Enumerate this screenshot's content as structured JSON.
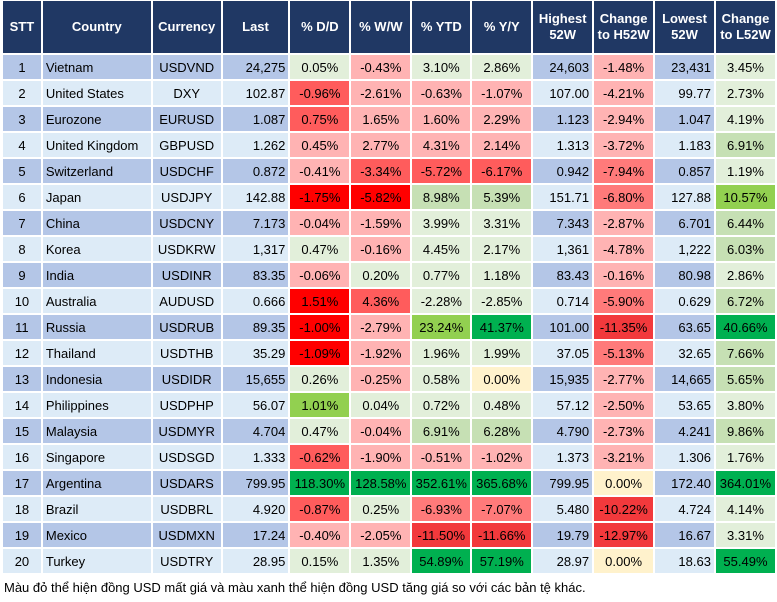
{
  "headers": [
    "STT",
    "Country",
    "Currency",
    "Last",
    "% D/D",
    "% W/W",
    "% YTD",
    "% Y/Y",
    "Highest 52W",
    "Change to H52W",
    "Lowest 52W",
    "Change to L52W"
  ],
  "palette": {
    "r1": "#ffb3b3",
    "r2": "#ff7a7a",
    "r3": "#ff5c5c",
    "r4": "#f2393c",
    "r5": "#ff0000",
    "g1": "#e2efda",
    "g2": "#c6e0b4",
    "g3": "#92d050",
    "g4": "#00b050",
    "y": "#fff2cc"
  },
  "rows": [
    {
      "stt": "1",
      "country": "Vietnam",
      "currency": "USDVND",
      "last": "24,275",
      "dd": "0.05%",
      "ww": "-0.43%",
      "ytd": "3.10%",
      "yy": "2.86%",
      "h52": "24,603",
      "ch52": "-1.48%",
      "l52": "23,431",
      "cl52": "3.45%",
      "colors": [
        "g1",
        "r1",
        "g1",
        "g1",
        "r1",
        "g1"
      ]
    },
    {
      "stt": "2",
      "country": "United States",
      "currency": "DXY",
      "last": "102.87",
      "dd": "-0.96%",
      "ww": "-2.61%",
      "ytd": "-0.63%",
      "yy": "-1.07%",
      "h52": "107.00",
      "ch52": "-4.21%",
      "l52": "99.77",
      "cl52": "2.73%",
      "colors": [
        "r3",
        "r1",
        "r1",
        "r1",
        "r1",
        "g1"
      ]
    },
    {
      "stt": "3",
      "country": "Eurozone",
      "currency": "EURUSD",
      "last": "1.087",
      "dd": "0.75%",
      "ww": "1.65%",
      "ytd": "1.60%",
      "yy": "2.29%",
      "h52": "1.123",
      "ch52": "-2.94%",
      "l52": "1.047",
      "cl52": "4.19%",
      "colors": [
        "r3",
        "r1",
        "r1",
        "r1",
        "r1",
        "g1"
      ]
    },
    {
      "stt": "4",
      "country": "United Kingdom",
      "currency": "GBPUSD",
      "last": "1.262",
      "dd": "0.45%",
      "ww": "2.77%",
      "ytd": "4.31%",
      "yy": "2.14%",
      "h52": "1.313",
      "ch52": "-3.72%",
      "l52": "1.183",
      "cl52": "6.91%",
      "colors": [
        "r1",
        "r1",
        "r1",
        "r1",
        "r1",
        "g2"
      ]
    },
    {
      "stt": "5",
      "country": "Switzerland",
      "currency": "USDCHF",
      "last": "0.872",
      "dd": "-0.41%",
      "ww": "-3.34%",
      "ytd": "-5.72%",
      "yy": "-6.17%",
      "h52": "0.942",
      "ch52": "-7.94%",
      "l52": "0.857",
      "cl52": "1.19%",
      "colors": [
        "r1",
        "r3",
        "r3",
        "r3",
        "r2",
        "g1"
      ]
    },
    {
      "stt": "6",
      "country": "Japan",
      "currency": "USDJPY",
      "last": "142.88",
      "dd": "-1.75%",
      "ww": "-5.82%",
      "ytd": "8.98%",
      "yy": "5.39%",
      "h52": "151.71",
      "ch52": "-6.80%",
      "l52": "127.88",
      "cl52": "10.57%",
      "colors": [
        "r5",
        "r5",
        "g2",
        "g2",
        "r2",
        "g3"
      ]
    },
    {
      "stt": "7",
      "country": "China",
      "currency": "USDCNY",
      "last": "7.173",
      "dd": "-0.04%",
      "ww": "-1.59%",
      "ytd": "3.99%",
      "yy": "3.31%",
      "h52": "7.343",
      "ch52": "-2.87%",
      "l52": "6.701",
      "cl52": "6.44%",
      "colors": [
        "r1",
        "r1",
        "g1",
        "g1",
        "r1",
        "g2"
      ]
    },
    {
      "stt": "8",
      "country": "Korea",
      "currency": "USDKRW",
      "last": "1,317",
      "dd": "0.47%",
      "ww": "-0.16%",
      "ytd": "4.45%",
      "yy": "2.17%",
      "h52": "1,361",
      "ch52": "-4.78%",
      "l52": "1,222",
      "cl52": "6.03%",
      "colors": [
        "g1",
        "r1",
        "g1",
        "g1",
        "r1",
        "g2"
      ]
    },
    {
      "stt": "9",
      "country": "India",
      "currency": "USDINR",
      "last": "83.35",
      "dd": "-0.06%",
      "ww": "0.20%",
      "ytd": "0.77%",
      "yy": "1.18%",
      "h52": "83.43",
      "ch52": "-0.16%",
      "l52": "80.98",
      "cl52": "2.86%",
      "colors": [
        "r1",
        "g1",
        "g1",
        "g1",
        "r1",
        "g1"
      ]
    },
    {
      "stt": "10",
      "country": "Australia",
      "currency": "AUDUSD",
      "last": "0.666",
      "dd": "1.51%",
      "ww": "4.36%",
      "ytd": "-2.28%",
      "yy": "-2.85%",
      "h52": "0.714",
      "ch52": "-5.90%",
      "l52": "0.629",
      "cl52": "6.72%",
      "colors": [
        "r5",
        "r3",
        "g1",
        "g1",
        "r2",
        "g2"
      ]
    },
    {
      "stt": "11",
      "country": "Russia",
      "currency": "USDRUB",
      "last": "89.35",
      "dd": "-1.00%",
      "ww": "-2.79%",
      "ytd": "23.24%",
      "yy": "41.37%",
      "h52": "101.00",
      "ch52": "-11.35%",
      "l52": "63.65",
      "cl52": "40.66%",
      "colors": [
        "r5",
        "r1",
        "g3",
        "g4",
        "r4",
        "g4"
      ]
    },
    {
      "stt": "12",
      "country": "Thailand",
      "currency": "USDTHB",
      "last": "35.29",
      "dd": "-1.09%",
      "ww": "-1.92%",
      "ytd": "1.96%",
      "yy": "1.99%",
      "h52": "37.05",
      "ch52": "-5.13%",
      "l52": "32.65",
      "cl52": "7.66%",
      "colors": [
        "r5",
        "r1",
        "g1",
        "g1",
        "r2",
        "g2"
      ]
    },
    {
      "stt": "13",
      "country": "Indonesia",
      "currency": "USDIDR",
      "last": "15,655",
      "dd": "0.26%",
      "ww": "-0.25%",
      "ytd": "0.58%",
      "yy": "0.00%",
      "h52": "15,935",
      "ch52": "-2.77%",
      "l52": "14,665",
      "cl52": "5.65%",
      "colors": [
        "g1",
        "r1",
        "g1",
        "y",
        "r1",
        "g2"
      ]
    },
    {
      "stt": "14",
      "country": "Philippines",
      "currency": "USDPHP",
      "last": "56.07",
      "dd": "1.01%",
      "ww": "0.04%",
      "ytd": "0.72%",
      "yy": "0.48%",
      "h52": "57.12",
      "ch52": "-2.50%",
      "l52": "53.65",
      "cl52": "3.80%",
      "colors": [
        "g3",
        "g1",
        "g1",
        "g1",
        "r1",
        "g1"
      ]
    },
    {
      "stt": "15",
      "country": "Malaysia",
      "currency": "USDMYR",
      "last": "4.704",
      "dd": "0.47%",
      "ww": "-0.04%",
      "ytd": "6.91%",
      "yy": "6.28%",
      "h52": "4.790",
      "ch52": "-2.73%",
      "l52": "4.241",
      "cl52": "9.86%",
      "colors": [
        "g1",
        "r1",
        "g2",
        "g2",
        "r1",
        "g2"
      ]
    },
    {
      "stt": "16",
      "country": "Singapore",
      "currency": "USDSGD",
      "last": "1.333",
      "dd": "-0.62%",
      "ww": "-1.90%",
      "ytd": "-0.51%",
      "yy": "-1.02%",
      "h52": "1.373",
      "ch52": "-3.21%",
      "l52": "1.306",
      "cl52": "1.76%",
      "colors": [
        "r3",
        "r1",
        "r1",
        "r1",
        "r1",
        "g1"
      ]
    },
    {
      "stt": "17",
      "country": "Argentina",
      "currency": "USDARS",
      "last": "799.95",
      "dd": "118.30%",
      "ww": "128.58%",
      "ytd": "352.61%",
      "yy": "365.68%",
      "h52": "799.95",
      "ch52": "0.00%",
      "l52": "172.40",
      "cl52": "364.01%",
      "colors": [
        "g4",
        "g4",
        "g4",
        "g4",
        "y",
        "g4"
      ]
    },
    {
      "stt": "18",
      "country": "Brazil",
      "currency": "USDBRL",
      "last": "4.920",
      "dd": "-0.87%",
      "ww": "0.25%",
      "ytd": "-6.93%",
      "yy": "-7.07%",
      "h52": "5.480",
      "ch52": "-10.22%",
      "l52": "4.724",
      "cl52": "4.14%",
      "colors": [
        "r3",
        "g1",
        "r2",
        "r2",
        "r4",
        "g1"
      ]
    },
    {
      "stt": "19",
      "country": "Mexico",
      "currency": "USDMXN",
      "last": "17.24",
      "dd": "-0.40%",
      "ww": "-2.05%",
      "ytd": "-11.50%",
      "yy": "-11.66%",
      "h52": "19.79",
      "ch52": "-12.97%",
      "l52": "16.67",
      "cl52": "3.31%",
      "colors": [
        "r1",
        "r1",
        "r4",
        "r4",
        "r4",
        "g1"
      ]
    },
    {
      "stt": "20",
      "country": "Turkey",
      "currency": "USDTRY",
      "last": "28.95",
      "dd": "0.15%",
      "ww": "1.35%",
      "ytd": "54.89%",
      "yy": "57.19%",
      "h52": "28.97",
      "ch52": "0.00%",
      "l52": "18.63",
      "cl52": "55.49%",
      "colors": [
        "g1",
        "g1",
        "g4",
        "g4",
        "y",
        "g4"
      ]
    }
  ],
  "caption": "Màu đỏ thể hiện đồng USD mất giá và màu xanh thể hiện đồng USD tăng giá so với các bản tệ khác."
}
